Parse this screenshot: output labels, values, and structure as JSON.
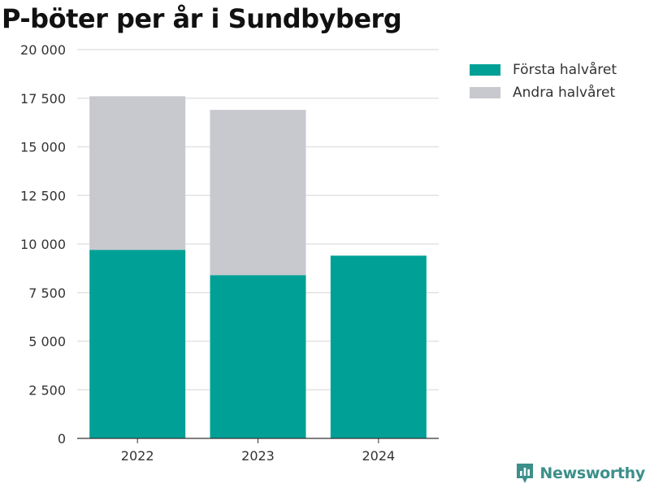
{
  "chart_data": {
    "type": "bar",
    "stacked": true,
    "title": "P-böter per år i Sundbyberg",
    "categories": [
      "2022",
      "2023",
      "2024"
    ],
    "series": [
      {
        "name": "Första halvåret",
        "color": "#00a096",
        "values": [
          9700,
          8400,
          9400
        ]
      },
      {
        "name": "Andra halvåret",
        "color": "#c8c8cf",
        "values": [
          7900,
          8500,
          null
        ]
      }
    ],
    "ylim": [
      0,
      20000
    ],
    "yticks": [
      0,
      2500,
      5000,
      7500,
      10000,
      12500,
      15000,
      17500,
      20000
    ],
    "ytick_labels": [
      "0",
      "2 500",
      "5 000",
      "7 500",
      "10 000",
      "12 500",
      "15 000",
      "17 500",
      "20 000"
    ],
    "xlabel": "",
    "ylabel": "",
    "grid": true,
    "legend_position": "top-right"
  },
  "brand": {
    "name": "Newsworthy",
    "color": "#3c8f8a",
    "icon": "bar-chart-badge-icon"
  }
}
